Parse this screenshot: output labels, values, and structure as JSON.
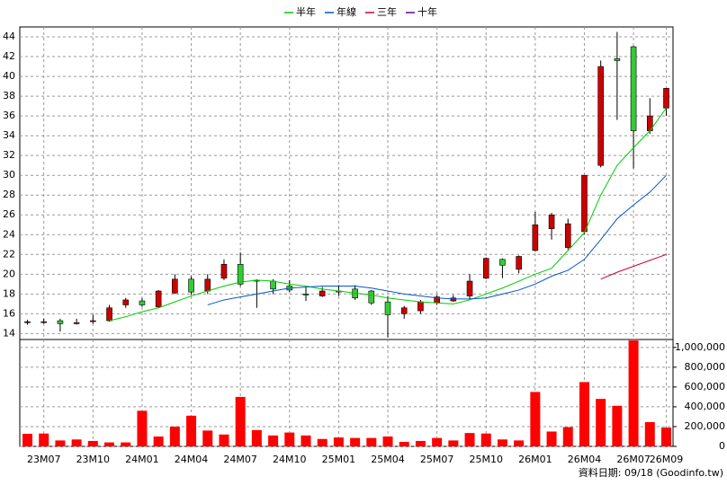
{
  "chart_data": {
    "type": "candlestick",
    "categories": [
      null,
      "23M07",
      null,
      null,
      "23M10",
      null,
      null,
      "24M01",
      null,
      null,
      "24M04",
      null,
      null,
      "24M07",
      null,
      null,
      "24M10",
      null,
      null,
      "25M01",
      null,
      null,
      "25M04",
      null,
      null,
      "25M07",
      null,
      null,
      "25M10",
      null,
      null,
      "26M01",
      null,
      null,
      "26M04",
      null,
      null,
      "26M07",
      null,
      "26M09"
    ],
    "open": [
      15.1,
      15.2,
      15.3,
      15.1,
      15.3,
      15.3,
      16.9,
      17.3,
      16.7,
      18.1,
      19.5,
      18.3,
      19.6,
      21.0,
      19.4,
      19.3,
      18.8,
      18.0,
      17.8,
      18.3,
      18.5,
      18.3,
      17.2,
      16.0,
      16.3,
      17.1,
      17.3,
      17.8,
      19.6,
      21.5,
      20.5,
      22.4,
      24.6,
      22.7,
      24.3,
      31.0,
      41.8,
      43.0,
      34.5,
      36.8
    ],
    "high": [
      15.4,
      15.5,
      15.5,
      15.5,
      15.9,
      16.9,
      17.6,
      17.6,
      18.4,
      20.0,
      19.8,
      20.0,
      21.5,
      22.2,
      19.5,
      19.5,
      19.4,
      18.7,
      18.7,
      18.9,
      18.9,
      18.4,
      17.8,
      16.8,
      17.4,
      17.9,
      17.9,
      20.0,
      21.7,
      21.6,
      21.9,
      26.3,
      26.2,
      25.6,
      30.0,
      41.6,
      44.5,
      43.1,
      37.8,
      38.8
    ],
    "low": [
      14.9,
      15.0,
      14.2,
      14.9,
      15.0,
      15.2,
      16.6,
      16.7,
      16.6,
      18.0,
      17.9,
      18.0,
      19.4,
      18.8,
      16.6,
      18.0,
      18.2,
      17.3,
      17.7,
      17.8,
      17.4,
      16.9,
      13.6,
      15.5,
      16.0,
      16.9,
      17.2,
      17.5,
      19.5,
      19.6,
      20.1,
      22.3,
      23.5,
      22.5,
      24.0,
      30.8,
      35.6,
      30.7,
      34.2,
      36.0
    ],
    "close": [
      15.2,
      15.2,
      15.0,
      15.1,
      15.3,
      16.6,
      17.4,
      16.9,
      18.3,
      19.5,
      18.2,
      19.5,
      21.0,
      19.0,
      19.3,
      18.5,
      18.4,
      17.9,
      18.3,
      18.2,
      17.6,
      17.1,
      15.9,
      16.6,
      17.2,
      17.7,
      17.6,
      19.3,
      21.6,
      20.9,
      21.8,
      25.0,
      26.0,
      25.1,
      30.0,
      41.0,
      41.6,
      34.5,
      36.0,
      38.8
    ],
    "up_color": "#cc0000",
    "down_color": "#33cc33",
    "ylim": [
      13.4,
      45
    ],
    "yticks": [
      14,
      16,
      18,
      20,
      22,
      24,
      26,
      28,
      30,
      32,
      34,
      36,
      38,
      40,
      42,
      44
    ],
    "y2lim": [
      0,
      1080000
    ],
    "y2ticks": [
      0,
      {
        "value": 200000,
        "label": "200,000"
      },
      {
        "value": 400000,
        "label": "400,000"
      },
      {
        "value": 600000,
        "label": "600,000"
      },
      {
        "value": 800000,
        "label": "800,000"
      },
      {
        "value": 1000000,
        "label": "1,000,000"
      }
    ],
    "grid": true,
    "series": [
      {
        "name": "半年",
        "color": "#00cc00",
        "type": "line",
        "values": [
          null,
          null,
          null,
          null,
          null,
          15.3,
          15.7,
          16.2,
          16.6,
          17.2,
          17.8,
          18.3,
          18.8,
          19.2,
          19.4,
          19.3,
          19.0,
          18.8,
          18.5,
          18.3,
          18.1,
          17.9,
          17.6,
          17.4,
          17.2,
          17.1,
          17.0,
          17.4,
          18.0,
          18.6,
          19.3,
          20.0,
          20.6,
          22.4,
          24.2,
          28.0,
          31.0,
          32.8,
          34.5,
          36.8
        ]
      },
      {
        "name": "年線",
        "color": "#0055cc",
        "type": "line",
        "values": [
          null,
          null,
          null,
          null,
          null,
          null,
          null,
          null,
          null,
          null,
          null,
          16.9,
          17.4,
          17.7,
          18.0,
          18.3,
          18.6,
          18.7,
          18.8,
          18.8,
          18.8,
          18.6,
          18.3,
          18.0,
          17.8,
          17.6,
          17.5,
          17.5,
          17.6,
          18.0,
          18.4,
          19.0,
          19.8,
          20.4,
          21.5,
          23.5,
          25.6,
          27.0,
          28.3,
          30.0
        ]
      },
      {
        "name": "三年",
        "color": "#cc0033",
        "type": "line",
        "values": [
          null,
          null,
          null,
          null,
          null,
          null,
          null,
          null,
          null,
          null,
          null,
          null,
          null,
          null,
          null,
          null,
          null,
          null,
          null,
          null,
          null,
          null,
          null,
          null,
          null,
          null,
          null,
          null,
          null,
          null,
          null,
          null,
          null,
          null,
          null,
          19.5,
          20.2,
          20.8,
          21.4,
          22.0
        ]
      },
      {
        "name": "十年",
        "color": "#660099",
        "type": "line",
        "values": [
          null,
          null,
          null,
          null,
          null,
          null,
          null,
          null,
          null,
          null,
          null,
          null,
          null,
          null,
          null,
          null,
          null,
          null,
          null,
          null,
          null,
          null,
          null,
          null,
          null,
          null,
          null,
          null,
          null,
          null,
          null,
          null,
          null,
          null,
          null,
          null,
          null,
          null,
          null,
          null
        ]
      },
      {
        "color": "#ff0000",
        "type": "bar",
        "axis": "y2",
        "values": [
          127000,
          130000,
          60000,
          70000,
          55000,
          40000,
          40000,
          360000,
          100000,
          200000,
          310000,
          160000,
          120000,
          500000,
          165000,
          110000,
          140000,
          110000,
          75000,
          90000,
          85000,
          85000,
          100000,
          45000,
          55000,
          85000,
          60000,
          135000,
          130000,
          70000,
          60000,
          550000,
          150000,
          195000,
          650000,
          480000,
          410000,
          1070000,
          245000,
          190000
        ]
      }
    ],
    "footer": "資料日期: 09/18 (Goodinfo.tw)"
  }
}
